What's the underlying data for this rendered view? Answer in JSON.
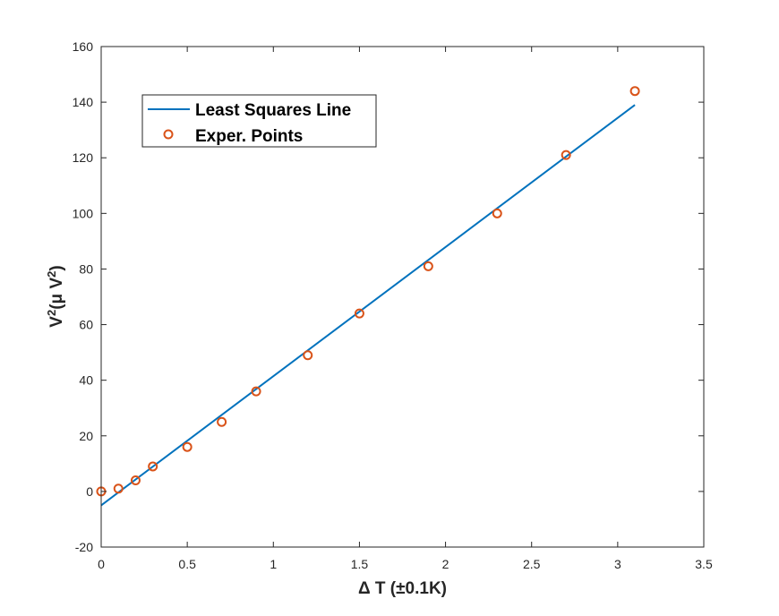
{
  "chart_data": {
    "type": "scatter",
    "xlabel": "Δ T (±0.1K)",
    "ylabel": {
      "prefix": "V",
      "sup1": "2",
      "middle": "(μ V",
      "sup2": "2",
      "suffix": ")"
    },
    "xlim": [
      0,
      3.5
    ],
    "ylim": [
      -20,
      160
    ],
    "x_ticks": [
      0,
      0.5,
      1,
      1.5,
      2,
      2.5,
      3,
      3.5
    ],
    "x_tick_labels": [
      "0",
      "0.5",
      "1",
      "1.5",
      "2",
      "2.5",
      "3",
      "3.5"
    ],
    "y_ticks": [
      -20,
      0,
      20,
      40,
      60,
      80,
      100,
      120,
      140,
      160
    ],
    "y_tick_labels": [
      "-20",
      "0",
      "20",
      "40",
      "60",
      "80",
      "100",
      "120",
      "140",
      "160"
    ],
    "grid": false,
    "legend_position": "top-left",
    "series": [
      {
        "name": "Least Squares Line",
        "kind": "line",
        "color": "#0072BD",
        "x": [
          0,
          3.1
        ],
        "y": [
          -5,
          139
        ]
      },
      {
        "name": "Exper. Points",
        "kind": "marker",
        "color": "#D95319",
        "x": [
          0,
          0.1,
          0.2,
          0.3,
          0.5,
          0.7,
          0.9,
          1.2,
          1.5,
          1.9,
          2.3,
          2.7,
          3.1
        ],
        "y": [
          0,
          1,
          4,
          9,
          16,
          25,
          36,
          49,
          64,
          81,
          100,
          121,
          144
        ]
      }
    ]
  }
}
